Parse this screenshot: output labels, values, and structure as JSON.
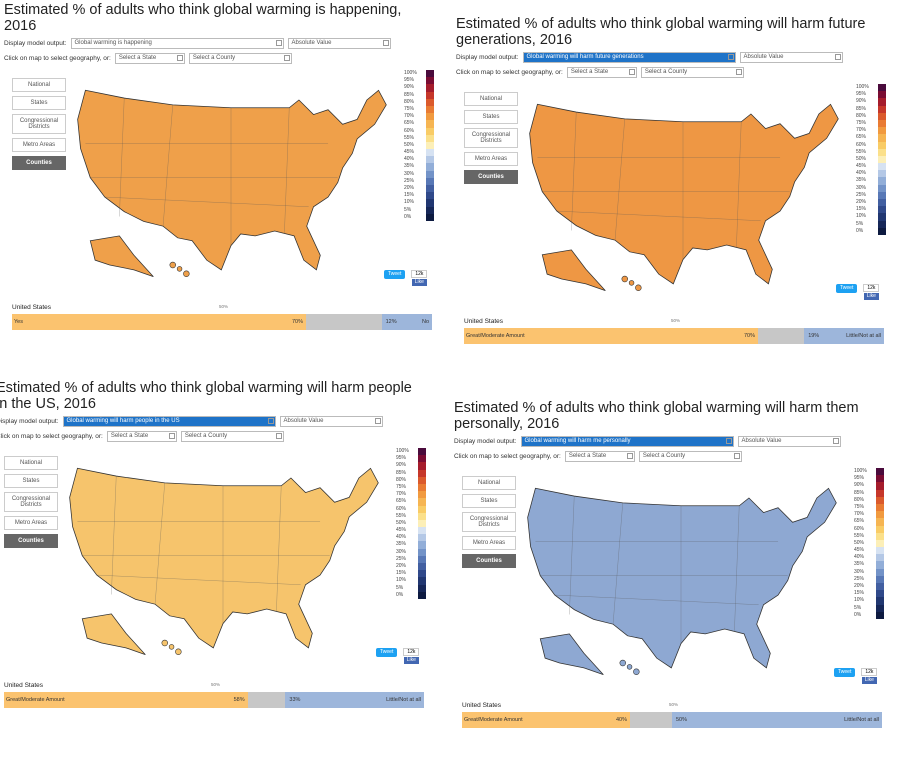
{
  "panels": [
    {
      "title": "Estimated % of adults who think global warming is happening, 2016",
      "output_label": "Display model output:",
      "output_value": "Global warming is happening",
      "output_highlight": false,
      "scale_value": "Absolute Value",
      "geo_label": "Click on map to select geography, or:",
      "state_select": "Select a State",
      "county_select": "Select a County",
      "nav": [
        "National",
        "States",
        "Congressional Districts",
        "Metro Areas",
        "Counties"
      ],
      "legend": [
        "100%",
        "95%",
        "90%",
        "85%",
        "80%",
        "75%",
        "70%",
        "65%",
        "60%",
        "55%",
        "50%",
        "45%",
        "40%",
        "35%",
        "30%",
        "25%",
        "20%",
        "15%",
        "10%",
        "5%",
        "0%"
      ],
      "tweet": "Tweet",
      "count": "12k",
      "like": "Like",
      "map_color": "#efa04a",
      "summary": {
        "region": "United States",
        "midpoint": "50%",
        "left": {
          "label": "Yes",
          "value": 70,
          "value_label": "70%"
        },
        "right": {
          "label": "No",
          "value": 12,
          "value_label": "12%"
        }
      }
    },
    {
      "title": "Estimated % of adults who think global warming will harm future generations, 2016",
      "output_label": "Display model output:",
      "output_value": "Global warming will harm future generations",
      "output_highlight": true,
      "scale_value": "Absolute Value",
      "geo_label": "Click on map to select geography, or:",
      "state_select": "Select a State",
      "county_select": "Select a County",
      "nav": [
        "National",
        "States",
        "Congressional Districts",
        "Metro Areas",
        "Counties"
      ],
      "legend": [
        "100%",
        "95%",
        "90%",
        "85%",
        "80%",
        "75%",
        "70%",
        "65%",
        "60%",
        "55%",
        "50%",
        "45%",
        "40%",
        "35%",
        "30%",
        "25%",
        "20%",
        "15%",
        "10%",
        "5%",
        "0%"
      ],
      "tweet": "Tweet",
      "count": "12k",
      "like": "Like",
      "map_color": "#ee9744",
      "summary": {
        "region": "United States",
        "midpoint": "50%",
        "left": {
          "label": "Great/Moderate Amount",
          "value": 70,
          "value_label": "70%"
        },
        "right": {
          "label": "Little/Not at all",
          "value": 19,
          "value_label": "19%"
        }
      }
    },
    {
      "title": "Estimated % of adults who think global warming will harm people in the US, 2016",
      "output_label": "Display model output:",
      "output_value": "Global warming will harm people in the US",
      "output_highlight": true,
      "scale_value": "Absolute Value",
      "geo_label": "Click on map to select geography, or:",
      "state_select": "Select a State",
      "county_select": "Select a County",
      "nav": [
        "National",
        "States",
        "Congressional Districts",
        "Metro Areas",
        "Counties"
      ],
      "legend": [
        "100%",
        "95%",
        "90%",
        "85%",
        "80%",
        "75%",
        "70%",
        "65%",
        "60%",
        "55%",
        "50%",
        "45%",
        "40%",
        "35%",
        "30%",
        "25%",
        "20%",
        "15%",
        "10%",
        "5%",
        "0%"
      ],
      "tweet": "Tweet",
      "count": "12k",
      "like": "Like",
      "map_color": "#f6c46c",
      "summary": {
        "region": "United States",
        "midpoint": "50%",
        "left": {
          "label": "Great/Moderate Amount",
          "value": 58,
          "value_label": "58%"
        },
        "right": {
          "label": "Little/Not at all",
          "value": 33,
          "value_label": "33%"
        }
      }
    },
    {
      "title": "Estimated % of adults who think global warming will harm them personally, 2016",
      "output_label": "Display model output:",
      "output_value": "Global warming will harm me personally",
      "output_highlight": true,
      "scale_value": "Absolute Value",
      "geo_label": "Click on map to select geography, or:",
      "state_select": "Select a State",
      "county_select": "Select a County",
      "nav": [
        "National",
        "States",
        "Congressional Districts",
        "Metro Areas",
        "Counties"
      ],
      "legend": [
        "100%",
        "95%",
        "90%",
        "85%",
        "80%",
        "75%",
        "70%",
        "65%",
        "60%",
        "55%",
        "50%",
        "45%",
        "40%",
        "35%",
        "30%",
        "25%",
        "20%",
        "15%",
        "10%",
        "5%",
        "0%"
      ],
      "tweet": "Tweet",
      "count": "12k",
      "like": "Like",
      "map_color": "#8ea8d2",
      "summary": {
        "region": "United States",
        "midpoint": "50%",
        "left": {
          "label": "Great/Moderate Amount",
          "value": 40,
          "value_label": "40%"
        },
        "right": {
          "label": "Little/Not at all",
          "value": 50,
          "value_label": "50%"
        }
      }
    }
  ]
}
